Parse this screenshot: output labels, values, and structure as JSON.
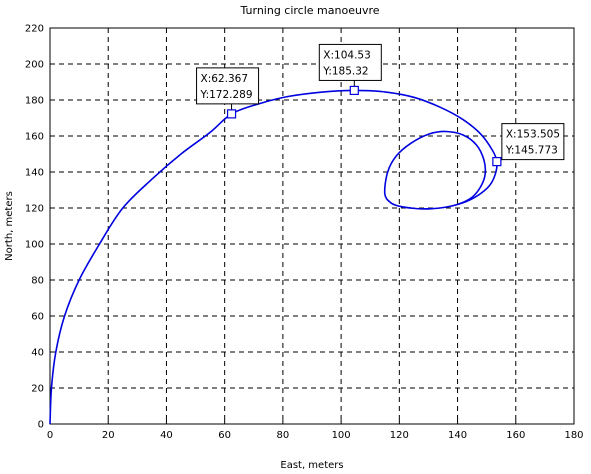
{
  "chart_data": {
    "type": "line",
    "title": "Turning circle manoeuvre",
    "xlabel": "East, meters",
    "ylabel": "North, meters",
    "xlim": [
      0,
      180
    ],
    "ylim": [
      0,
      220
    ],
    "xticks": [
      "0",
      "20",
      "40",
      "60",
      "80",
      "100",
      "120",
      "140",
      "160",
      "180"
    ],
    "yticks": [
      "0",
      "20",
      "40",
      "60",
      "80",
      "100",
      "120",
      "140",
      "160",
      "180",
      "200",
      "220"
    ],
    "grid": true,
    "series": [
      {
        "color": "#0000e0",
        "x": [
          0,
          0.5,
          2,
          5,
          10,
          17,
          25,
          35,
          45,
          55,
          62.367,
          72,
          82,
          94,
          104.53,
          115,
          125,
          134,
          142,
          148,
          152,
          153.505,
          153,
          151,
          147,
          142,
          136,
          130,
          125,
          120,
          117,
          115,
          116,
          119,
          124,
          130,
          136,
          142,
          146.5,
          149,
          149.5,
          148,
          145,
          140,
          134,
          128
        ],
        "y": [
          0,
          20,
          40,
          60,
          80,
          100,
          120,
          136,
          150,
          162,
          172.289,
          178,
          182,
          184.5,
          185.32,
          184.5,
          181.5,
          176,
          169,
          161,
          152,
          145.773,
          139,
          132.5,
          127,
          123,
          120.5,
          119.5,
          119.8,
          121,
          123,
          128,
          140,
          149,
          156,
          161,
          162.5,
          160.5,
          155,
          147,
          139,
          132,
          126,
          122,
          120,
          119.5
        ]
      }
    ],
    "datatips": [
      {
        "x_label": "X:62.367",
        "y_label": "Y:172.289",
        "x": 62.367,
        "y": 172.289
      },
      {
        "x_label": "X:104.53",
        "y_label": "Y:185.32",
        "x": 104.53,
        "y": 185.32
      },
      {
        "x_label": "X:153.505",
        "y_label": "Y:145.773",
        "x": 153.505,
        "y": 145.773
      }
    ]
  }
}
